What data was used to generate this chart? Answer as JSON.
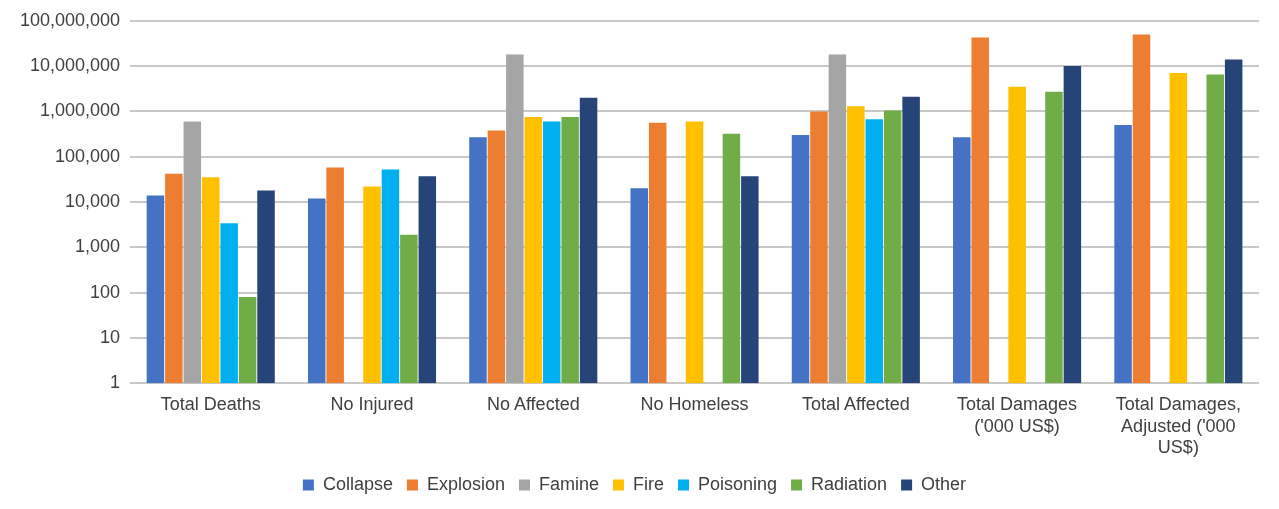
{
  "chart_data": {
    "type": "bar",
    "categories": [
      "Total Deaths",
      "No Injured",
      "No Affected",
      "No Homeless",
      "Total Affected",
      "Total Damages ('000 US$)",
      "Total Damages, Adjusted ('000 US$)"
    ],
    "series": [
      {
        "name": "Collapse",
        "color": "#4472c4",
        "values": [
          14000,
          12000,
          270000,
          20000,
          300000,
          270000,
          500000
        ]
      },
      {
        "name": "Explosion",
        "color": "#ed7d31",
        "values": [
          42000,
          58000,
          380000,
          560000,
          1000000,
          43000000,
          50000000
        ]
      },
      {
        "name": "Famine",
        "color": "#a5a5a5",
        "values": [
          600000,
          null,
          18000000,
          null,
          18000000,
          null,
          null
        ]
      },
      {
        "name": "Fire",
        "color": "#ffc000",
        "values": [
          35000,
          22000,
          750000,
          600000,
          1300000,
          3500000,
          7000000
        ]
      },
      {
        "name": "Poisoning",
        "color": "#00b0f0",
        "values": [
          3400,
          52000,
          600000,
          null,
          670000,
          null,
          null
        ]
      },
      {
        "name": "Radiation",
        "color": "#70ad47",
        "values": [
          80,
          1900,
          750000,
          320000,
          1050000,
          2700000,
          6500000
        ]
      },
      {
        "name": "Other",
        "color": "#264478",
        "values": [
          18000,
          37000,
          2000000,
          37000,
          2100000,
          10000000,
          14000000
        ]
      }
    ],
    "log": true,
    "ylim": [
      1,
      100000000
    ],
    "yticks": [
      1,
      10,
      100,
      {
        "value": 1000,
        "label": "1,000"
      },
      {
        "value": 10000,
        "label": "10,000"
      },
      {
        "value": 100000,
        "label": "100,000"
      },
      {
        "value": 1000000,
        "label": "1,000,000"
      },
      {
        "value": 10000000,
        "label": "10,000,000"
      },
      {
        "value": 100000000,
        "label": "100,000,000"
      }
    ],
    "grid": "y",
    "legend": "bottom"
  }
}
